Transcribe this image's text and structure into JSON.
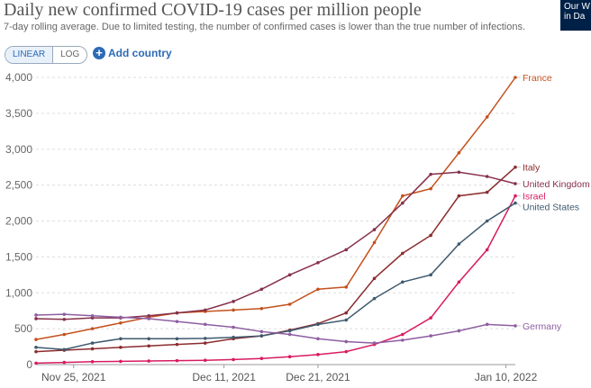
{
  "header": {
    "title": "Daily new confirmed COVID-19 cases per million people",
    "subtitle": "7-day rolling average. Due to limited testing, the number of confirmed cases is lower than the true number of infections.",
    "logo_line1": "Our W",
    "logo_line2": "in Da"
  },
  "controls": {
    "linear_label": "LINEAR",
    "log_label": "LOG",
    "active_scale": "linear",
    "add_country_label": "Add country",
    "add_icon": "plus-circle-icon"
  },
  "chart_data": {
    "type": "line",
    "x": [
      "2021-11-21",
      "2021-11-24",
      "2021-11-27",
      "2021-11-30",
      "2021-12-03",
      "2021-12-06",
      "2021-12-09",
      "2021-12-12",
      "2021-12-15",
      "2021-12-18",
      "2021-12-21",
      "2021-12-24",
      "2021-12-27",
      "2021-12-30",
      "2022-01-02",
      "2022-01-05",
      "2022-01-08",
      "2022-01-11"
    ],
    "x_tick_labels": [
      "Nov 25, 2021",
      "Dec 11, 2021",
      "Dec 21, 2021",
      "Jan 10, 2022"
    ],
    "x_tick_dates": [
      "2021-11-25",
      "2021-12-11",
      "2021-12-21",
      "2022-01-10"
    ],
    "x_range": [
      "2021-11-21",
      "2022-01-11"
    ],
    "ylim": [
      0,
      4000
    ],
    "y_ticks": [
      0,
      500,
      1000,
      1500,
      2000,
      2500,
      3000,
      3500,
      4000
    ],
    "y_tick_labels": [
      "0",
      "500",
      "1,000",
      "1,500",
      "2,000",
      "2,500",
      "3,000",
      "3,500",
      "4,000"
    ],
    "grid": "horizontal dashed",
    "series": [
      {
        "name": "France",
        "color": "#c4511d",
        "values": [
          350,
          420,
          500,
          580,
          660,
          720,
          740,
          760,
          780,
          840,
          1050,
          1080,
          1700,
          2350,
          2450,
          2950,
          3450,
          4000
        ]
      },
      {
        "name": "Italy",
        "color": "#8b2c2f",
        "values": [
          180,
          200,
          220,
          240,
          260,
          280,
          300,
          360,
          400,
          480,
          570,
          720,
          1200,
          1550,
          1800,
          2350,
          2400,
          2750
        ]
      },
      {
        "name": "United Kingdom",
        "color": "#86304a",
        "values": [
          640,
          630,
          650,
          650,
          680,
          720,
          760,
          880,
          1050,
          1250,
          1420,
          1600,
          1880,
          2250,
          2650,
          2680,
          2620,
          2520
        ]
      },
      {
        "name": "Israel",
        "color": "#d81b60",
        "values": [
          20,
          30,
          40,
          45,
          50,
          55,
          60,
          70,
          85,
          110,
          140,
          180,
          280,
          420,
          650,
          1150,
          1600,
          2350
        ]
      },
      {
        "name": "United States",
        "color": "#3f5a6e",
        "values": [
          240,
          210,
          300,
          360,
          360,
          360,
          365,
          380,
          400,
          470,
          560,
          620,
          920,
          1150,
          1250,
          1680,
          2000,
          2250
        ]
      },
      {
        "name": "Germany",
        "color": "#8e5ea2",
        "values": [
          690,
          700,
          680,
          660,
          640,
          600,
          560,
          520,
          460,
          420,
          360,
          320,
          300,
          340,
          400,
          470,
          560,
          540
        ]
      }
    ]
  }
}
